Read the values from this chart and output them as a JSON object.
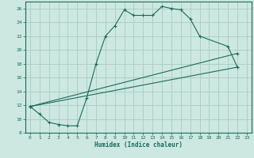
{
  "xlabel": "Humidex (Indice chaleur)",
  "bg_color": "#cce8e0",
  "grid_color": "#aaccbf",
  "line_color": "#1a6b5a",
  "xlim": [
    -0.5,
    23.5
  ],
  "ylim": [
    8,
    27
  ],
  "xticks": [
    0,
    1,
    2,
    3,
    4,
    5,
    6,
    7,
    8,
    9,
    10,
    11,
    12,
    13,
    14,
    15,
    16,
    17,
    18,
    19,
    20,
    21,
    22,
    23
  ],
  "yticks": [
    8,
    10,
    12,
    14,
    16,
    18,
    20,
    22,
    24,
    26
  ],
  "line1_x": [
    0,
    1,
    2,
    3,
    4,
    5,
    6,
    7,
    8,
    9,
    10,
    11,
    12,
    13,
    14,
    15,
    16,
    17,
    18,
    21,
    22
  ],
  "line1_y": [
    11.8,
    10.7,
    9.5,
    9.2,
    9.0,
    9.0,
    13.0,
    18.0,
    22.0,
    23.5,
    25.8,
    25.0,
    25.0,
    25.0,
    26.3,
    26.0,
    25.8,
    24.5,
    22.0,
    20.5,
    17.5
  ],
  "line3_x": [
    0,
    22
  ],
  "line3_y": [
    11.8,
    17.5
  ],
  "line4_x": [
    0,
    22
  ],
  "line4_y": [
    11.8,
    19.5
  ]
}
